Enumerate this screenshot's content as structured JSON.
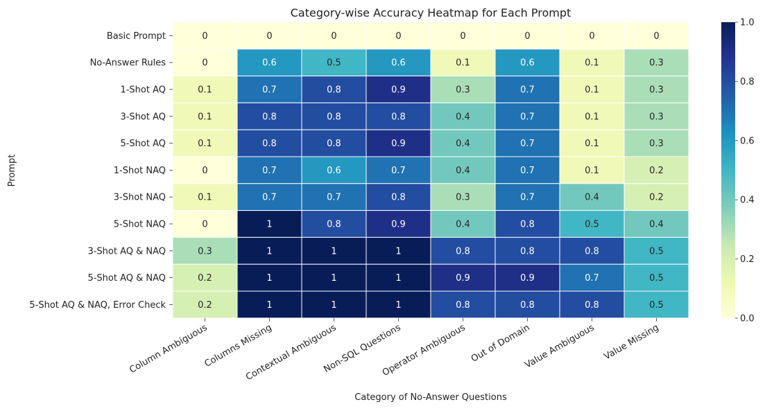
{
  "chart_data": {
    "type": "heatmap",
    "title": "Category-wise Accuracy Heatmap for Each Prompt",
    "xlabel": "Category of No-Answer Questions",
    "ylabel": "Prompt",
    "columns": [
      "Column Ambiguous",
      "Columns Missing",
      "Contextual Ambiguous",
      "Non-SQL Questions",
      "Operator Ambiguous",
      "Out of Domain",
      "Value Ambiguous",
      "Value Missing"
    ],
    "rows": [
      "Basic Prompt",
      "No-Answer Rules",
      "1-Shot AQ",
      "3-Shot AQ",
      "5-Shot AQ",
      "1-Shot NAQ",
      "3-Shot NAQ",
      "5-Shot NAQ",
      "3-Shot AQ & NAQ",
      "5-Shot AQ & NAQ",
      "5-Shot AQ & NAQ, Error Check"
    ],
    "values": [
      [
        0,
        0,
        0,
        0,
        0,
        0,
        0,
        0
      ],
      [
        0,
        0.6,
        0.5,
        0.6,
        0.1,
        0.6,
        0.1,
        0.3
      ],
      [
        0.1,
        0.7,
        0.8,
        0.9,
        0.3,
        0.7,
        0.1,
        0.3
      ],
      [
        0.1,
        0.8,
        0.8,
        0.8,
        0.4,
        0.7,
        0.1,
        0.3
      ],
      [
        0.1,
        0.8,
        0.8,
        0.9,
        0.4,
        0.7,
        0.1,
        0.3
      ],
      [
        0,
        0.7,
        0.6,
        0.7,
        0.4,
        0.7,
        0.1,
        0.2
      ],
      [
        0.1,
        0.7,
        0.7,
        0.8,
        0.3,
        0.7,
        0.4,
        0.2
      ],
      [
        0,
        1,
        0.8,
        0.9,
        0.4,
        0.8,
        0.5,
        0.4
      ],
      [
        0.3,
        1,
        1,
        1,
        0.8,
        0.8,
        0.8,
        0.5
      ],
      [
        0.2,
        1,
        1,
        1,
        0.9,
        0.9,
        0.7,
        0.5
      ],
      [
        0.2,
        1,
        1,
        1,
        0.8,
        0.8,
        0.8,
        0.5
      ]
    ],
    "colormap": "YlGnBu",
    "vmin": 0,
    "vmax": 1,
    "colorbar_ticks": [
      0.0,
      0.2,
      0.4,
      0.6,
      0.8,
      1.0
    ],
    "colorbar_tick_labels": [
      "0.0",
      "0.2",
      "0.4",
      "0.6",
      "0.8",
      "1.0"
    ]
  }
}
